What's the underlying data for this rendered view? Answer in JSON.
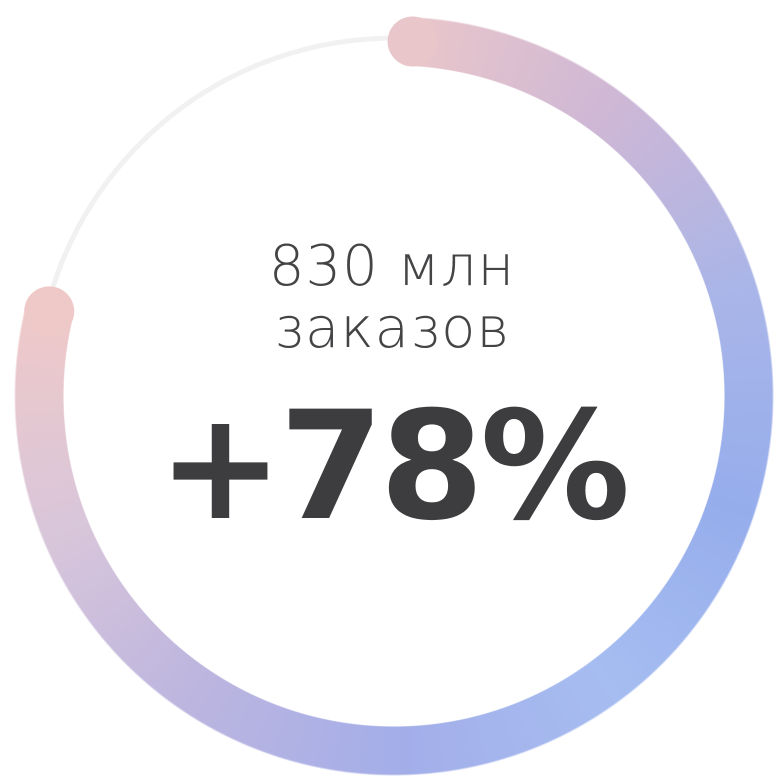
{
  "chart_data": {
    "type": "gauge",
    "title_lines": [
      "830 млн",
      "заказов"
    ],
    "value": 78,
    "value_label": "+78%",
    "ylim": [
      0,
      100
    ],
    "colors": [
      "#e9c6ca",
      "#cdb7d6",
      "#a9b5e8",
      "#96adec",
      "#a6bdf1",
      "#a3aee9",
      "#bcb5df",
      "#d9c6da",
      "#efc9c8"
    ],
    "track_color": "#f1f1f1"
  }
}
